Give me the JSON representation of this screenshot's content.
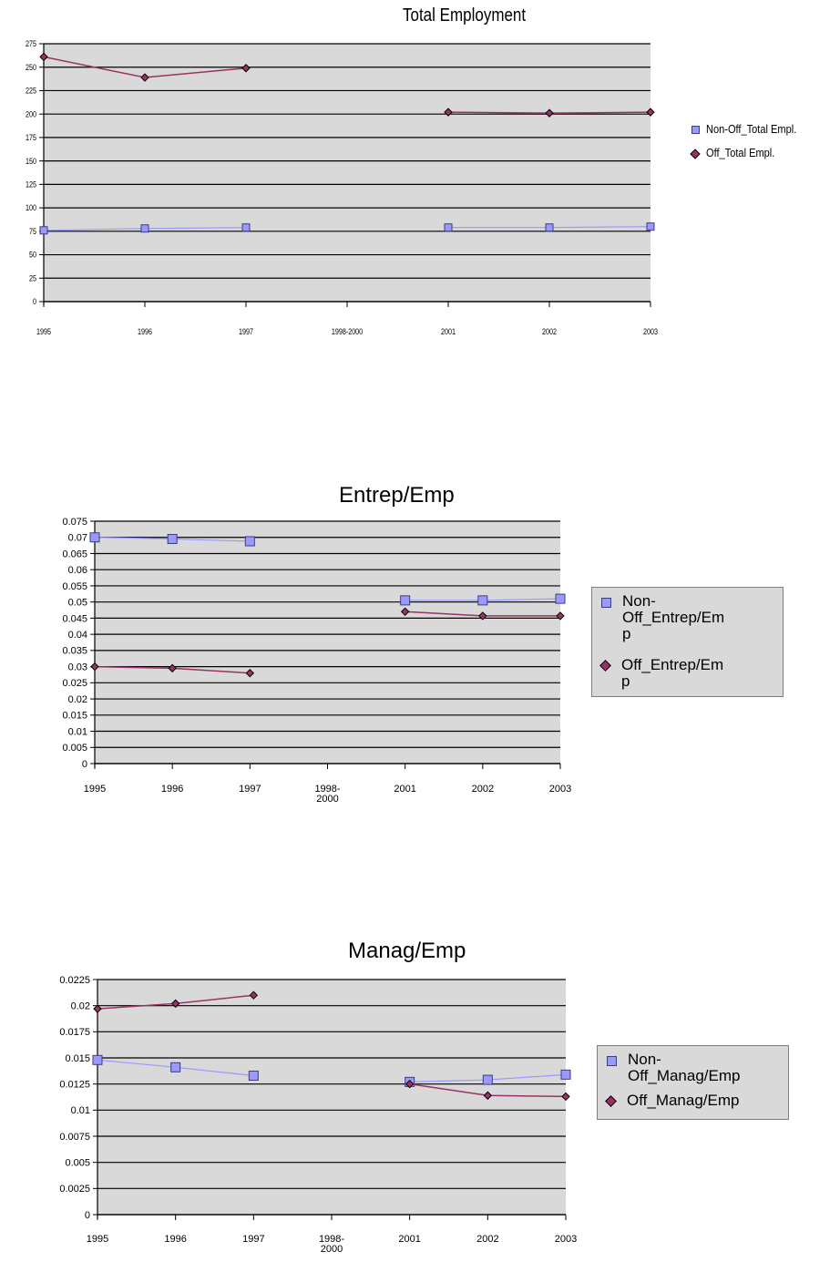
{
  "chart_data": [
    {
      "type": "line",
      "title": "Total Employment",
      "categories": [
        "1995",
        "1996",
        "1997",
        "1998-2000",
        "2001",
        "2002",
        "2003"
      ],
      "ylim": [
        0,
        275
      ],
      "yticks": [
        "0",
        "25",
        "50",
        "75",
        "100",
        "125",
        "150",
        "175",
        "200",
        "225",
        "250",
        "275"
      ],
      "grid": true,
      "legend_position": "right",
      "series": [
        {
          "name": "Non-Off_Total Empl.",
          "values": [
            76,
            78,
            79,
            null,
            79,
            79,
            80
          ],
          "color": "#9999ff",
          "marker": "square"
        },
        {
          "name": "Off_Total Empl.",
          "values": [
            261,
            239,
            249,
            null,
            202,
            201,
            202
          ],
          "color": "#993366",
          "marker": "diamond"
        }
      ]
    },
    {
      "type": "line",
      "title": "Entrep/Emp",
      "categories": [
        "1995",
        "1996",
        "1997",
        "1998-\n2000",
        "2001",
        "2002",
        "2003"
      ],
      "ylim": [
        0,
        0.075
      ],
      "yticks": [
        "0",
        "0.005",
        "0.01",
        "0.015",
        "0.02",
        "0.025",
        "0.03",
        "0.035",
        "0.04",
        "0.045",
        "0.05",
        "0.055",
        "0.06",
        "0.065",
        "0.07",
        "0.075"
      ],
      "grid": true,
      "legend_position": "right",
      "series": [
        {
          "name": "Non-\nOff_Entrep/Em\np",
          "values": [
            0.07,
            0.0695,
            0.0688,
            null,
            0.0505,
            0.0505,
            0.051
          ],
          "color": "#9999ff",
          "marker": "square"
        },
        {
          "name": "Off_Entrep/Em\np",
          "values": [
            0.03,
            0.0295,
            0.028,
            null,
            0.047,
            0.0457,
            0.0457
          ],
          "color": "#993366",
          "marker": "diamond"
        }
      ]
    },
    {
      "type": "line",
      "title": "Manag/Emp",
      "categories": [
        "1995",
        "1996",
        "1997",
        "1998-\n2000",
        "2001",
        "2002",
        "2003"
      ],
      "ylim": [
        0,
        0.0225
      ],
      "yticks": [
        "0",
        "0.0025",
        "0.005",
        "0.0075",
        "0.01",
        "0.0125",
        "0.015",
        "0.0175",
        "0.02",
        "0.0225"
      ],
      "grid": true,
      "legend_position": "right",
      "series": [
        {
          "name": "Non-\nOff_Manag/Emp",
          "values": [
            0.0148,
            0.0141,
            0.0133,
            null,
            0.0127,
            0.0129,
            0.0134
          ],
          "color": "#9999ff",
          "marker": "square"
        },
        {
          "name": "Off_Manag/Emp",
          "values": [
            0.0197,
            0.0202,
            0.021,
            null,
            0.0125,
            0.0114,
            0.0113
          ],
          "color": "#993366",
          "marker": "diamond"
        }
      ]
    }
  ]
}
